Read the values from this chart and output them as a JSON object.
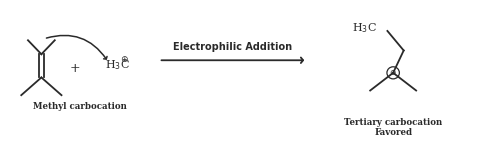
{
  "bg_color": "#ffffff",
  "text_color": "#2a2a2a",
  "arrow_color": "#2a2a2a",
  "reaction_arrow_label": "Electrophilic Addition",
  "label_methyl": "Methyl carbocation",
  "label_tertiary1": "Tertiary carbocation",
  "label_tertiary2": "Favored",
  "plus_sign": "+",
  "figsize": [
    4.8,
    1.41
  ],
  "dpi": 100
}
